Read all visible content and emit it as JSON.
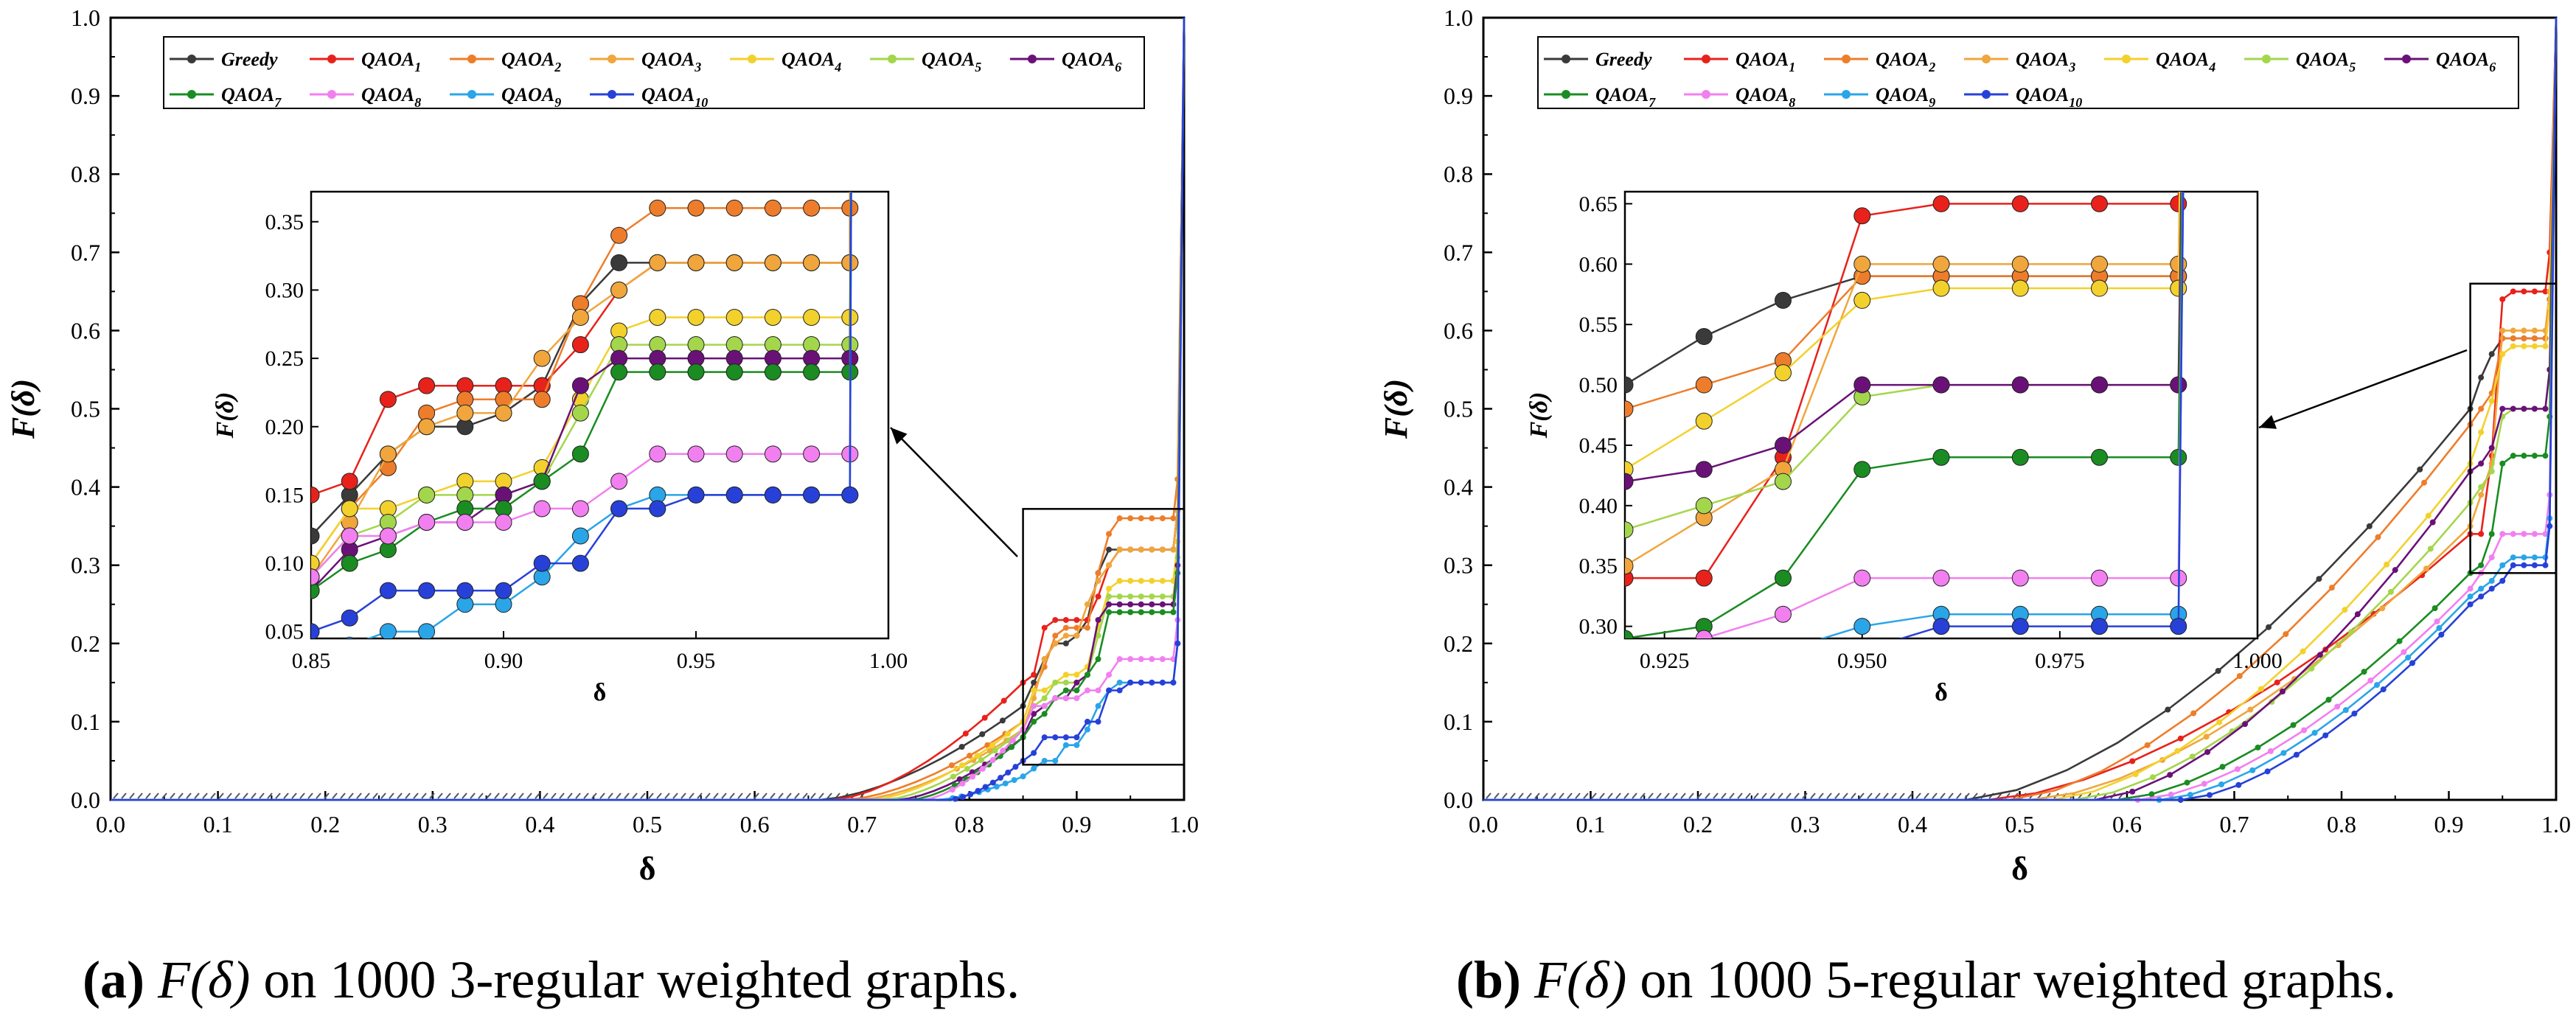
{
  "chart_data": [
    {
      "type": "line",
      "panel": "a",
      "xlabel": "δ",
      "ylabel": "F(δ)",
      "xlim": [
        0.0,
        1.0
      ],
      "ylim": [
        0.0,
        1.0
      ],
      "xticks": [
        "0.0",
        "0.1",
        "0.2",
        "0.3",
        "0.4",
        "0.5",
        "0.6",
        "0.7",
        "0.8",
        "0.9",
        "1.0"
      ],
      "yticks": [
        "0.0",
        "0.1",
        "0.2",
        "0.3",
        "0.4",
        "0.5",
        "0.6",
        "0.7",
        "0.8",
        "0.9",
        "1.0"
      ],
      "legend_position": "top",
      "inset": {
        "xlabel": "δ",
        "ylabel": "F(δ)",
        "xlim": [
          0.85,
          1.0
        ],
        "ylim": [
          0.045,
          0.372
        ],
        "xticks": [
          "0.85",
          "0.90",
          "0.95",
          "1.00"
        ],
        "yticks": [
          "0.05",
          "0.10",
          "0.15",
          "0.20",
          "0.25",
          "0.30",
          "0.35"
        ],
        "zoom_box_x": [
          0.85,
          1.0
        ],
        "zoom_box_y": [
          0.045,
          0.372
        ]
      },
      "series": [
        {
          "name": "Greedy",
          "color": "#3a3a3a",
          "zx": [
            0.85,
            0.86,
            0.87,
            0.88,
            0.89,
            0.9,
            0.91,
            0.92,
            0.93,
            0.94,
            0.95,
            0.96,
            0.97,
            0.98,
            0.99
          ],
          "zy": [
            0.12,
            0.15,
            0.18,
            0.2,
            0.2,
            0.21,
            0.23,
            0.29,
            0.32,
            0.32,
            0.32,
            0.32,
            0.32,
            0.32,
            0.32
          ]
        },
        {
          "name": "QAOA1",
          "color": "#e8221b",
          "zx": [
            0.85,
            0.86,
            0.87,
            0.88,
            0.89,
            0.9,
            0.91,
            0.92,
            0.93,
            0.94,
            0.95,
            0.96,
            0.97,
            0.98,
            0.99
          ],
          "zy": [
            0.15,
            0.16,
            0.22,
            0.23,
            0.23,
            0.23,
            0.23,
            0.26,
            0.3,
            0.32,
            0.32,
            0.32,
            0.32,
            0.32,
            0.32
          ]
        },
        {
          "name": "QAOA2",
          "color": "#ee7d2b",
          "zx": [
            0.85,
            0.86,
            0.87,
            0.88,
            0.89,
            0.9,
            0.91,
            0.92,
            0.93,
            0.94,
            0.95,
            0.96,
            0.97,
            0.98,
            0.99
          ],
          "zy": [
            0.1,
            0.14,
            0.17,
            0.21,
            0.22,
            0.22,
            0.22,
            0.29,
            0.34,
            0.36,
            0.36,
            0.36,
            0.36,
            0.36,
            0.36
          ]
        },
        {
          "name": "QAOA3",
          "color": "#f0a63c",
          "zx": [
            0.85,
            0.86,
            0.87,
            0.88,
            0.89,
            0.9,
            0.91,
            0.92,
            0.93,
            0.94,
            0.95,
            0.96,
            0.97,
            0.98,
            0.99
          ],
          "zy": [
            0.09,
            0.13,
            0.18,
            0.2,
            0.21,
            0.21,
            0.25,
            0.28,
            0.3,
            0.32,
            0.32,
            0.32,
            0.32,
            0.32,
            0.32
          ]
        },
        {
          "name": "QAOA4",
          "color": "#f3d12c",
          "zx": [
            0.85,
            0.86,
            0.87,
            0.88,
            0.89,
            0.9,
            0.91,
            0.92,
            0.93,
            0.94,
            0.95,
            0.96,
            0.97,
            0.98,
            0.99
          ],
          "zy": [
            0.1,
            0.14,
            0.14,
            0.15,
            0.16,
            0.16,
            0.17,
            0.22,
            0.27,
            0.28,
            0.28,
            0.28,
            0.28,
            0.28,
            0.28
          ]
        },
        {
          "name": "QAOA5",
          "color": "#a4d64c",
          "zx": [
            0.85,
            0.86,
            0.87,
            0.88,
            0.89,
            0.9,
            0.91,
            0.92,
            0.93,
            0.94,
            0.95,
            0.96,
            0.97,
            0.98,
            0.99
          ],
          "zy": [
            0.09,
            0.12,
            0.13,
            0.15,
            0.15,
            0.15,
            0.16,
            0.21,
            0.26,
            0.26,
            0.26,
            0.26,
            0.26,
            0.26,
            0.26
          ]
        },
        {
          "name": "QAOA6",
          "color": "#6a1178",
          "zx": [
            0.85,
            0.86,
            0.87,
            0.88,
            0.89,
            0.9,
            0.91,
            0.92,
            0.93,
            0.94,
            0.95,
            0.96,
            0.97,
            0.98,
            0.99
          ],
          "zy": [
            0.08,
            0.11,
            0.12,
            0.13,
            0.13,
            0.15,
            0.16,
            0.23,
            0.25,
            0.25,
            0.25,
            0.25,
            0.25,
            0.25,
            0.25
          ]
        },
        {
          "name": "QAOA7",
          "color": "#1a8c22",
          "zx": [
            0.85,
            0.86,
            0.87,
            0.88,
            0.89,
            0.9,
            0.91,
            0.92,
            0.93,
            0.94,
            0.95,
            0.96,
            0.97,
            0.98,
            0.99
          ],
          "zy": [
            0.08,
            0.1,
            0.11,
            0.13,
            0.14,
            0.14,
            0.16,
            0.18,
            0.24,
            0.24,
            0.24,
            0.24,
            0.24,
            0.24,
            0.24
          ]
        },
        {
          "name": "QAOA8",
          "color": "#f27ff0",
          "zx": [
            0.85,
            0.86,
            0.87,
            0.88,
            0.89,
            0.9,
            0.91,
            0.92,
            0.93,
            0.94,
            0.95,
            0.96,
            0.97,
            0.98,
            0.99
          ],
          "zy": [
            0.09,
            0.12,
            0.12,
            0.13,
            0.13,
            0.13,
            0.14,
            0.14,
            0.16,
            0.18,
            0.18,
            0.18,
            0.18,
            0.18,
            0.18
          ]
        },
        {
          "name": "QAOA9",
          "color": "#2aa5e8",
          "zx": [
            0.85,
            0.86,
            0.87,
            0.88,
            0.89,
            0.9,
            0.91,
            0.92,
            0.93,
            0.94,
            0.95,
            0.96,
            0.97,
            0.98,
            0.99
          ],
          "zy": [
            0.03,
            0.04,
            0.05,
            0.05,
            0.07,
            0.07,
            0.09,
            0.12,
            0.14,
            0.15,
            0.15,
            0.15,
            0.15,
            0.15,
            0.15
          ]
        },
        {
          "name": "QAOA10",
          "color": "#2741d8",
          "zx": [
            0.85,
            0.86,
            0.87,
            0.88,
            0.89,
            0.9,
            0.91,
            0.92,
            0.93,
            0.94,
            0.95,
            0.96,
            0.97,
            0.98,
            0.99
          ],
          "zy": [
            0.05,
            0.06,
            0.08,
            0.08,
            0.08,
            0.08,
            0.1,
            0.1,
            0.14,
            0.14,
            0.15,
            0.15,
            0.15,
            0.15,
            0.15
          ]
        }
      ]
    },
    {
      "type": "line",
      "panel": "b",
      "xlabel": "δ",
      "ylabel": "F(δ)",
      "xlim": [
        0.0,
        1.0
      ],
      "ylim": [
        0.0,
        1.0
      ],
      "xticks": [
        "0.0",
        "0.1",
        "0.2",
        "0.3",
        "0.4",
        "0.5",
        "0.6",
        "0.7",
        "0.8",
        "0.9",
        "1.0"
      ],
      "yticks": [
        "0.0",
        "0.1",
        "0.2",
        "0.3",
        "0.4",
        "0.5",
        "0.6",
        "0.7",
        "0.8",
        "0.9",
        "1.0"
      ],
      "legend_position": "top",
      "inset": {
        "xlabel": "δ",
        "ylabel": "F(δ)",
        "xlim": [
          0.92,
          1.0
        ],
        "ylim": [
          0.29,
          0.66
        ],
        "xticks": [
          "0.925",
          "0.950",
          "0.975",
          "1.000"
        ],
        "yticks": [
          "0.30",
          "0.35",
          "0.40",
          "0.45",
          "0.50",
          "0.55",
          "0.60",
          "0.65"
        ],
        "zoom_box_x": [
          0.92,
          1.0
        ],
        "zoom_box_y": [
          0.29,
          0.66
        ]
      },
      "series": [
        {
          "name": "Greedy",
          "color": "#3a3a3a",
          "zx": [
            0.92,
            0.93,
            0.94,
            0.95,
            0.96,
            0.97,
            0.98,
            0.99
          ],
          "zy": [
            0.5,
            0.54,
            0.57,
            0.59,
            0.59,
            0.59,
            0.59,
            0.59
          ]
        },
        {
          "name": "QAOA1",
          "color": "#e8221b",
          "zx": [
            0.92,
            0.93,
            0.94,
            0.95,
            0.96,
            0.97,
            0.98,
            0.99
          ],
          "zy": [
            0.34,
            0.34,
            0.44,
            0.64,
            0.65,
            0.65,
            0.65,
            0.65
          ]
        },
        {
          "name": "QAOA2",
          "color": "#ee7d2b",
          "zx": [
            0.92,
            0.93,
            0.94,
            0.95,
            0.96,
            0.97,
            0.98,
            0.99
          ],
          "zy": [
            0.48,
            0.5,
            0.52,
            0.59,
            0.59,
            0.59,
            0.59,
            0.59
          ]
        },
        {
          "name": "QAOA3",
          "color": "#f0a63c",
          "zx": [
            0.92,
            0.93,
            0.94,
            0.95,
            0.96,
            0.97,
            0.98,
            0.99
          ],
          "zy": [
            0.35,
            0.39,
            0.43,
            0.6,
            0.6,
            0.6,
            0.6,
            0.6
          ]
        },
        {
          "name": "QAOA4",
          "color": "#f3d12c",
          "zx": [
            0.92,
            0.93,
            0.94,
            0.95,
            0.96,
            0.97,
            0.98,
            0.99
          ],
          "zy": [
            0.43,
            0.47,
            0.51,
            0.57,
            0.58,
            0.58,
            0.58,
            0.58
          ]
        },
        {
          "name": "QAOA5",
          "color": "#a4d64c",
          "zx": [
            0.92,
            0.93,
            0.94,
            0.95,
            0.96,
            0.97,
            0.98,
            0.99
          ],
          "zy": [
            0.38,
            0.4,
            0.42,
            0.49,
            0.5,
            0.5,
            0.5,
            0.5
          ]
        },
        {
          "name": "QAOA6",
          "color": "#6a1178",
          "zx": [
            0.92,
            0.93,
            0.94,
            0.95,
            0.96,
            0.97,
            0.98,
            0.99
          ],
          "zy": [
            0.42,
            0.43,
            0.45,
            0.5,
            0.5,
            0.5,
            0.5,
            0.5
          ]
        },
        {
          "name": "QAOA7",
          "color": "#1a8c22",
          "zx": [
            0.92,
            0.93,
            0.94,
            0.95,
            0.96,
            0.97,
            0.98,
            0.99
          ],
          "zy": [
            0.29,
            0.3,
            0.34,
            0.43,
            0.44,
            0.44,
            0.44,
            0.44
          ]
        },
        {
          "name": "QAOA8",
          "color": "#f27ff0",
          "zx": [
            0.92,
            0.93,
            0.94,
            0.95,
            0.96,
            0.97,
            0.98,
            0.99
          ],
          "zy": [
            0.27,
            0.29,
            0.31,
            0.34,
            0.34,
            0.34,
            0.34,
            0.34
          ]
        },
        {
          "name": "QAOA9",
          "color": "#2aa5e8",
          "zx": [
            0.92,
            0.93,
            0.94,
            0.95,
            0.96,
            0.97,
            0.98,
            0.99
          ],
          "zy": [
            0.26,
            0.27,
            0.28,
            0.3,
            0.31,
            0.31,
            0.31,
            0.31
          ]
        },
        {
          "name": "QAOA10",
          "color": "#2741d8",
          "zx": [
            0.92,
            0.93,
            0.94,
            0.95,
            0.96,
            0.97,
            0.98,
            0.99
          ],
          "zy": [
            0.25,
            0.26,
            0.27,
            0.28,
            0.3,
            0.3,
            0.3,
            0.3
          ]
        }
      ]
    }
  ],
  "captions": [
    {
      "label": "(a)",
      "func": "F(δ)",
      "text": " on 1000 3-regular weighted graphs."
    },
    {
      "label": "(b)",
      "func": "F(δ)",
      "text": " on 1000 5-regular weighted graphs."
    }
  ]
}
